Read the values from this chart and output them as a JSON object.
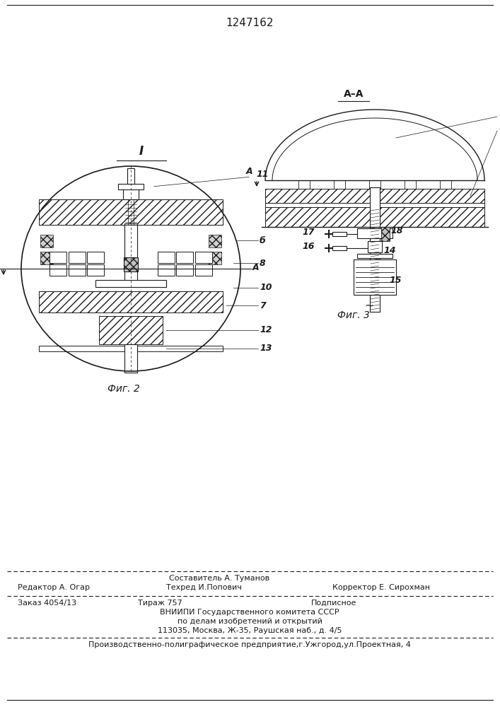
{
  "patent_number": "1247162",
  "bg_color": "#ffffff",
  "line_color": "#1a1a1a",
  "fig2_caption": "Фиг. 2",
  "fig3_caption": "Фиг. 3",
  "footer_line1_left": "Редактор А. Огар",
  "footer_line1_center": "Составитель А. Туманов",
  "footer_line1_center2": "Техред И.Попович",
  "footer_line1_right": "Корректор Е. Сирохман",
  "footer_line2_col1": "Заказ 4054/13",
  "footer_line2_col2": "Тираж 757",
  "footer_line2_col3": "Подписное",
  "footer_line3": "ВНИИПИ Государственного комитета СССР",
  "footer_line4": "по делам изобретений и открытий",
  "footer_line5": "113035, Москва, Ж-35, Раушская наб., д. 4/5",
  "footer_line6": "Производственно-полиграфическое предприятие,г.Ужгород,ул.Проектная, 4"
}
